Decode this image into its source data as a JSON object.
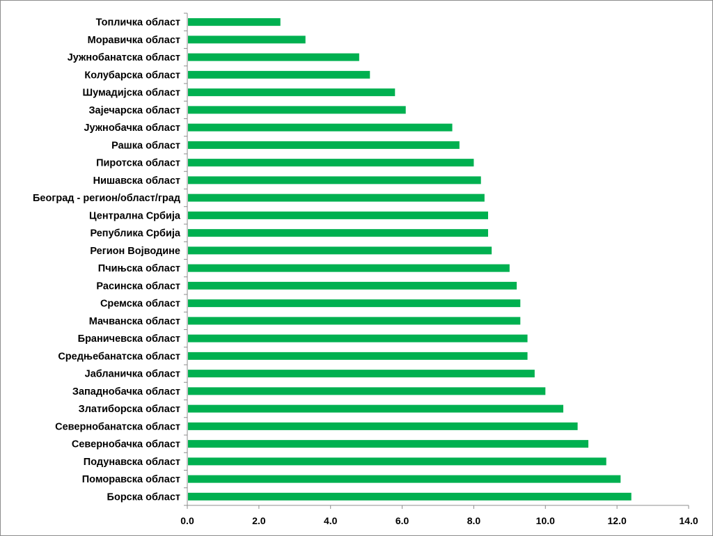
{
  "chart_data": {
    "type": "bar",
    "orientation": "horizontal",
    "categories": [
      "Топличка област",
      "Моравичка област",
      "Јужнобанатска област",
      "Колубарска област",
      "Шумадијска област",
      "Зајечарска област",
      "Јужнобачка област",
      "Рашка област",
      "Пиротска област",
      "Нишавска област",
      "Београд - регион/област/град",
      "Централна Србија",
      "Република Србија",
      "Регион Војводине",
      "Пчињска област",
      "Расинска област",
      "Сремска област",
      "Мачванска област",
      "Браничевска област",
      "Средњебанатска област",
      "Јабланичка област",
      "Западнобачка област",
      "Златиборска област",
      "Севернобанатска област",
      "Севернобачка област",
      "Подунавска област",
      "Поморавска област",
      "Борска област"
    ],
    "values": [
      2.6,
      3.3,
      4.8,
      5.1,
      5.8,
      6.1,
      7.4,
      7.6,
      8.0,
      8.2,
      8.3,
      8.4,
      8.4,
      8.5,
      9.0,
      9.2,
      9.3,
      9.3,
      9.5,
      9.5,
      9.7,
      10.0,
      10.5,
      10.9,
      11.2,
      11.7,
      12.1,
      12.4
    ],
    "xlim": [
      0,
      14
    ],
    "xticks": [
      "0.0",
      "2.0",
      "4.0",
      "6.0",
      "8.0",
      "10.0",
      "12.0",
      "14.0"
    ],
    "bar_color": "#00b050",
    "grid": false,
    "legend": "none",
    "title": "",
    "xlabel": "",
    "ylabel": ""
  }
}
